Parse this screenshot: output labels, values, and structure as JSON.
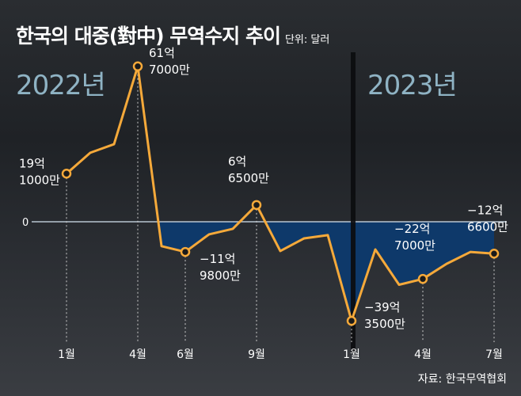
{
  "chart_data": {
    "type": "line",
    "title": "한국의 대중(對中) 무역수지 추이",
    "unit": "단위: 달러",
    "year_labels": [
      "2022년",
      "2023년"
    ],
    "x": [
      "2022-01",
      "2022-02",
      "2022-03",
      "2022-04",
      "2022-05",
      "2022-06",
      "2022-07",
      "2022-08",
      "2022-09",
      "2022-10",
      "2022-11",
      "2022-12",
      "2023-01",
      "2023-02",
      "2023-03",
      "2023-04",
      "2023-05",
      "2023-06",
      "2023-07"
    ],
    "values": [
      19.1,
      27.4,
      30.8,
      61.7,
      -9.7,
      -11.98,
      -5.0,
      -2.8,
      6.65,
      -11.6,
      -6.6,
      -5.3,
      -39.35,
      -11.0,
      -25.0,
      -22.7,
      -16.7,
      -12.0,
      -12.66
    ],
    "value_unit": "억 달러",
    "zero_label": "0",
    "ticks": [
      {
        "index": 0,
        "label": "1월"
      },
      {
        "index": 3,
        "label": "4월"
      },
      {
        "index": 5,
        "label": "6월"
      },
      {
        "index": 8,
        "label": "9월"
      },
      {
        "index": 12,
        "label": "1월"
      },
      {
        "index": 15,
        "label": "4월"
      },
      {
        "index": 18,
        "label": "7월"
      }
    ],
    "annotations": [
      {
        "index": 0,
        "line1": "19억",
        "line2": "1000만"
      },
      {
        "index": 3,
        "line1": "61억",
        "line2": "7000만"
      },
      {
        "index": 5,
        "line1": "−11억",
        "line2": "9800만"
      },
      {
        "index": 8,
        "line1": "6억",
        "line2": "6500만"
      },
      {
        "index": 12,
        "line1": "−39억",
        "line2": "3500만"
      },
      {
        "index": 15,
        "line1": "−22억",
        "line2": "7000만"
      },
      {
        "index": 18,
        "line1": "−12억",
        "line2": "6600만"
      }
    ],
    "colors": {
      "line": "#f5a93a",
      "fill": "#0d3a6e",
      "zero": "#b8c4d0"
    }
  },
  "source": "자료: 한국무역협회"
}
